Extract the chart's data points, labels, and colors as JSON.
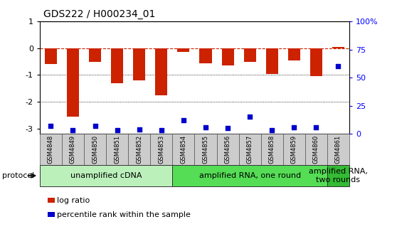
{
  "title": "GDS222 / H000234_01",
  "samples": [
    "GSM4848",
    "GSM4849",
    "GSM4850",
    "GSM4851",
    "GSM4852",
    "GSM4853",
    "GSM4854",
    "GSM4855",
    "GSM4856",
    "GSM4857",
    "GSM4858",
    "GSM4859",
    "GSM4860",
    "GSM4861"
  ],
  "log_ratio": [
    -0.58,
    -2.55,
    -0.52,
    -1.3,
    -1.2,
    -1.75,
    -0.15,
    -0.55,
    -0.65,
    -0.52,
    -0.95,
    -0.45,
    -1.05,
    0.05
  ],
  "percentile": [
    7,
    3,
    7,
    3,
    4,
    3,
    12,
    6,
    5,
    15,
    3,
    6,
    6,
    60
  ],
  "bar_color": "#cc2200",
  "dot_color": "#0000cc",
  "dashed_color": "#cc2200",
  "ylim_left": [
    -3.2,
    1.0
  ],
  "ylim_right": [
    0,
    100
  ],
  "right_ticks": [
    0,
    25,
    50,
    75,
    100
  ],
  "right_tick_labels": [
    "0",
    "25",
    "50",
    "75",
    "100%"
  ],
  "left_ticks": [
    -3,
    -2,
    -1,
    0,
    1
  ],
  "dotted_lines": [
    -1,
    -2
  ],
  "protocol_groups": [
    {
      "label": "unamplified cDNA",
      "start": 0,
      "end": 5,
      "color": "#bbf0bb"
    },
    {
      "label": "amplified RNA, one round",
      "start": 6,
      "end": 12,
      "color": "#55dd55"
    },
    {
      "label": "amplified RNA,\ntwo rounds",
      "start": 13,
      "end": 13,
      "color": "#33bb33"
    }
  ],
  "protocol_label": "protocol",
  "legend_items": [
    {
      "color": "#cc2200",
      "label": "log ratio"
    },
    {
      "color": "#0000cc",
      "label": "percentile rank within the sample"
    }
  ],
  "bar_width": 0.55,
  "sample_box_color": "#cccccc",
  "title_fontsize": 10,
  "tick_fontsize": 8,
  "sample_fontsize": 6,
  "protocol_fontsize": 8,
  "legend_fontsize": 8
}
